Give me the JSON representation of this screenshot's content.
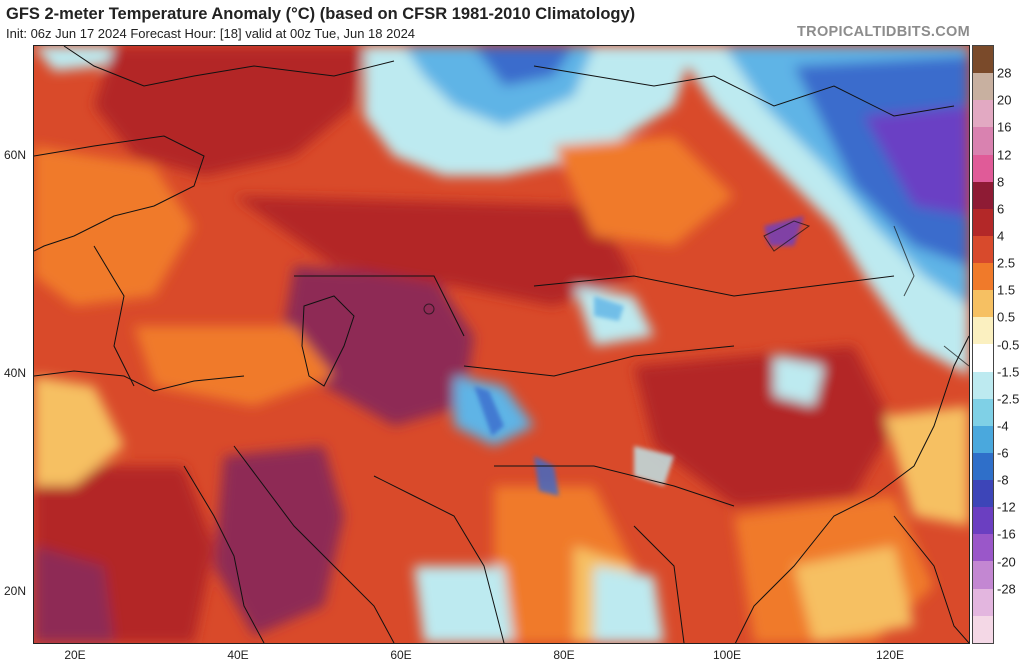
{
  "header": {
    "title": "GFS 2-meter Temperature Anomaly (°C) (based on CFSR 1981-2010 Climatology)",
    "subtitle": "Init: 06z Jun 17 2024   Forecast Hour: [18]   valid at 00z Tue, Jun 18 2024",
    "brand": "TROPICALTIDBITS.COM"
  },
  "axes": {
    "lat_labels": [
      "60N",
      "40N",
      "20N"
    ],
    "lon_labels": [
      "20E",
      "40E",
      "60E",
      "80E",
      "100E",
      "120E"
    ]
  },
  "colorbar": {
    "labels": [
      "28",
      "20",
      "16",
      "12",
      "8",
      "6",
      "4",
      "2.5",
      "1.5",
      "0.5",
      "-0.5",
      "-1.5",
      "-2.5",
      "-4",
      "-6",
      "-8",
      "-12",
      "-16",
      "-20",
      "-28"
    ],
    "colors": [
      "#7a4a2a",
      "#c8b0a0",
      "#e2a9c2",
      "#d982b0",
      "#e05b98",
      "#8e1b34",
      "#b32828",
      "#d84a2c",
      "#f07a2a",
      "#f6c062",
      "#fbf0c0",
      "#ffffff",
      "#bdeaf0",
      "#7fd0e6",
      "#4aa8dd",
      "#2f6fc9",
      "#3d45b8",
      "#6b3fc1",
      "#9a57c9",
      "#c387d2",
      "#e3b6df",
      "#f4d8e6"
    ]
  },
  "map": {
    "colors": {
      "very_hot": "#8e2b55",
      "hot": "#b32828",
      "warm": "#d94a2a",
      "mild": "#f07a2a",
      "slight": "#f6c062",
      "neutral": "#fbf0c0",
      "cool": "#bdeaf0",
      "cold": "#5fb4e6",
      "colder": "#3b6ccc",
      "coldest": "#6a3fc4"
    }
  }
}
